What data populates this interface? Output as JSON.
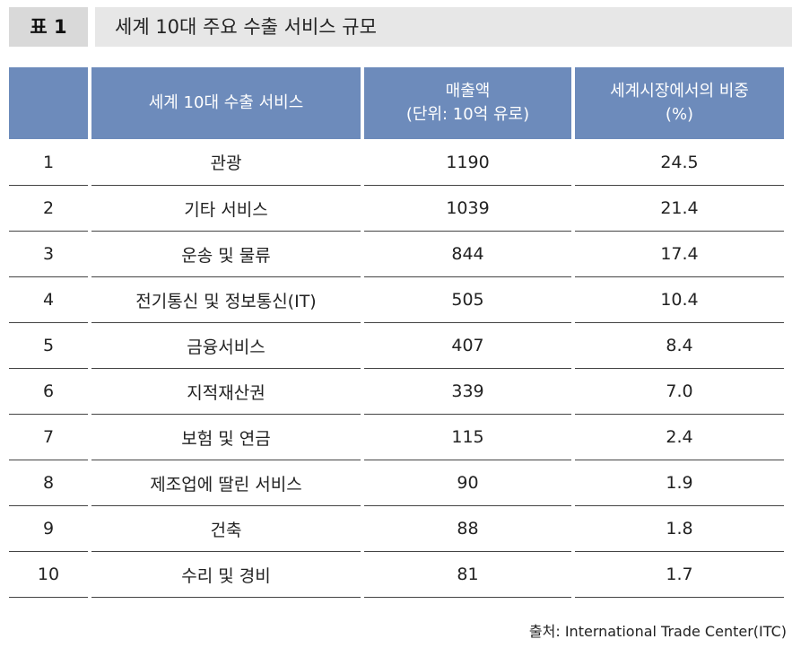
{
  "title": {
    "label": "표 1",
    "text": "세계 10대 주요 수출 서비스 규모"
  },
  "table": {
    "headers": {
      "rank": "",
      "service": "세계 10대 수출 서비스",
      "sales_line1": "매출액",
      "sales_line2": "(단위: 10억 유로)",
      "share_line1": "세계시장에서의 비중",
      "share_line2": "(%)"
    },
    "rows": [
      {
        "rank": "1",
        "service": "관광",
        "sales": "1190",
        "share": "24.5"
      },
      {
        "rank": "2",
        "service": "기타 서비스",
        "sales": "1039",
        "share": "21.4"
      },
      {
        "rank": "3",
        "service": "운송 및 물류",
        "sales": "844",
        "share": "17.4"
      },
      {
        "rank": "4",
        "service": "전기통신 및 정보통신(IT)",
        "sales": "505",
        "share": "10.4"
      },
      {
        "rank": "5",
        "service": "금융서비스",
        "sales": "407",
        "share": "8.4"
      },
      {
        "rank": "6",
        "service": "지적재산권",
        "sales": "339",
        "share": "7.0"
      },
      {
        "rank": "7",
        "service": "보험 및 연금",
        "sales": "115",
        "share": "2.4"
      },
      {
        "rank": "8",
        "service": "제조업에 딸린 서비스",
        "sales": "90",
        "share": "1.9"
      },
      {
        "rank": "9",
        "service": "건축",
        "sales": "88",
        "share": "1.8"
      },
      {
        "rank": "10",
        "service": "수리 및 경비",
        "sales": "81",
        "share": "1.7"
      }
    ]
  },
  "source": "출처: International Trade Center(ITC)",
  "colors": {
    "header_bg": "#6d8bbb",
    "title_label_bg": "#d9d9d9",
    "title_text_bg": "#e7e7e7"
  }
}
